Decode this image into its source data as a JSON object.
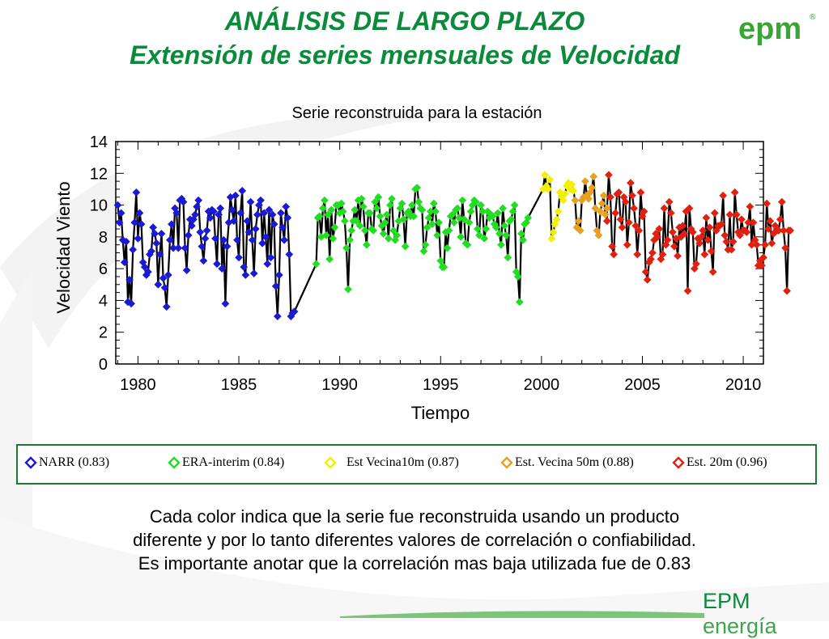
{
  "header": {
    "title_line1": "ANÁLISIS DE LARGO PLAZO",
    "title_line2": "Extensión de series mensuales de Velocidad",
    "logo_text": "epm",
    "logo_mark": "®"
  },
  "legend": {
    "items": [
      {
        "label": "NARR (0.83)",
        "color": "#1a1ad6"
      },
      {
        "label": "ERA-interim (0.84)",
        "color": "#22dd22"
      },
      {
        "label": "Est Vecina10m (0.87)",
        "color": "#f2f200"
      },
      {
        "label": "Est. Vecina 50m (0.88)",
        "color": "#e8a020"
      },
      {
        "label": "Est. 20m (0.96)",
        "color": "#e02010"
      }
    ]
  },
  "caption": {
    "line1": "Cada color indica que la serie fue reconstruida usando un producto",
    "line2": "diferente y por lo tanto diferentes valores de correlación o confiabilidad.",
    "line3": "Es importante anotar que la correlación mas baja utilizada fue de 0.83"
  },
  "footer": {
    "brand": "EPM",
    "brand2": "energía"
  },
  "colors": {
    "green": "#0a8a3a",
    "line": "#000000"
  },
  "chart_data": {
    "type": "line",
    "title": "Serie reconstruida para la estación",
    "xlabel": "Tiempo",
    "ylabel": "Velocidad Viento",
    "xlim": [
      1978.9,
      2011.0
    ],
    "ylim": [
      0,
      14
    ],
    "xticks": [
      1980,
      1985,
      1990,
      1995,
      2000,
      2005,
      2010
    ],
    "xtick_labels": [
      "1980",
      "1985",
      "1990",
      "1995",
      "2000",
      "2005",
      "2010"
    ],
    "yticks": [
      0,
      2,
      4,
      6,
      8,
      10,
      12,
      14
    ],
    "ytick_labels": [
      "0",
      "2",
      "4",
      "6",
      "8",
      "10",
      "12",
      "14"
    ],
    "series": [
      {
        "name": "NARR (0.83)",
        "color": "#1a1ad6",
        "start": 1979.0,
        "values": [
          10.0,
          8.9,
          9.5,
          7.8,
          6.4,
          7.7,
          3.9,
          5.3,
          3.8,
          7.2,
          8.9,
          10.8,
          7.9,
          9.5,
          8.8,
          6.4,
          6.1,
          5.6,
          5.8,
          6.9,
          7.1,
          8.6,
          8.2,
          7.6,
          5.0,
          6.9,
          8.2,
          5.4,
          4.8,
          3.6,
          5.6,
          7.8,
          8.8,
          7.3,
          9.8,
          9.5,
          7.3,
          10.3,
          10.4,
          10.2,
          7.3,
          5.9,
          8.1,
          9.1,
          8.7,
          9.1,
          9.4,
          9.9,
          10.3,
          8.3,
          7.4,
          6.5,
          7.9,
          8.4,
          9.6,
          9.2,
          9.7,
          9.6,
          7.9,
          6.3,
          9.4,
          9.8,
          6.0,
          7.8,
          3.8,
          7.4,
          8.9,
          10.5,
          9.7,
          9.0,
          10.6,
          7.8,
          6.7,
          9.5,
          10.9,
          6.1,
          5.6,
          9.0,
          8.3,
          10.2,
          7.8,
          5.7,
          8.5,
          9.4,
          10.0,
          10.3,
          7.6,
          9.5,
          8.0,
          6.3,
          9.7,
          6.7,
          9.4,
          8.8,
          4.9,
          3.0,
          5.6,
          9.5,
          8.6,
          7.8,
          9.9,
          9.2,
          6.9,
          3.0,
          3.2,
          3.3
        ]
      },
      {
        "name": "ERA-interim (0.84)",
        "color": "#22dd22",
        "start": 1988.833,
        "values": [
          6.3,
          9.2,
          9.3,
          8.0,
          9.8,
          10.3,
          8.1,
          9.4,
          6.6,
          9.7,
          7.9,
          8.6,
          10.0,
          10.0,
          9.5,
          10.1,
          9.6,
          9.0,
          7.3,
          4.7,
          7.8,
          8.4,
          9.0,
          9.7,
          9.0,
          10.3,
          8.7,
          10.4,
          9.9,
          8.4,
          7.5,
          9.5,
          9.5,
          8.5,
          8.4,
          10.2,
          9.8,
          10.5,
          9.3,
          8.7,
          8.2,
          8.9,
          9.4,
          7.9,
          10.0,
          10.4,
          8.4,
          7.8,
          8.1,
          9.0,
          9.8,
          10.1,
          9.1,
          7.4,
          9.5,
          9.6,
          9.3,
          10.0,
          9.3,
          11.0,
          11.1,
          10.2,
          9.8,
          9.7,
          7.1,
          7.5,
          8.6,
          9.2,
          9.6,
          8.8,
          10.1,
          9.6,
          8.1,
          8.9,
          6.5,
          6.1,
          6.1,
          8.3,
          7.3,
          8.4,
          9.3,
          9.4,
          8.9,
          9.7,
          9.8,
          9.2,
          8.0,
          10.3,
          9.1,
          7.6,
          7.5,
          8.9,
          9.6,
          10.0,
          10.3,
          10.2,
          8.5,
          8.1,
          10.0,
          9.6,
          7.9,
          8.5,
          9.6,
          9.2,
          9.4,
          9.3,
          8.8,
          8.6,
          9.5,
          8.2,
          7.5,
          9.8,
          8.7,
          8.1,
          6.7,
          9.0,
          9.1,
          9.6,
          10.0,
          5.8,
          5.5,
          3.9,
          8.2,
          7.8,
          8.8,
          8.9,
          9.2
        ]
      },
      {
        "name": "Est Vecina10m (0.87)",
        "color": "#f2f200",
        "start": 2000.083,
        "values": [
          11.0,
          11.9,
          11.2,
          11.0,
          11.6,
          7.9,
          8.3,
          8.8,
          9.1,
          9.6,
          10.8,
          10.5,
          10.3,
          10.7,
          11.2,
          11.4,
          11.0,
          11.3,
          10.9
        ]
      },
      {
        "name": "Est. Vecina 50m (0.88)",
        "color": "#e8a020",
        "start": 2001.667,
        "values": [
          10.3,
          8.6,
          9.0,
          8.4,
          10.3,
          10.5,
          11.5,
          10.6,
          10.4,
          10.8,
          11.1,
          11.8,
          9.8,
          8.4,
          8.1,
          9.6,
          10.1,
          10.6,
          9.4,
          9.8
        ]
      },
      {
        "name": "Est. 20m (0.96)",
        "color": "#e02010",
        "start": 2003.25,
        "values": [
          9.0,
          11.9,
          10.5,
          7.4,
          6.9,
          9.5,
          10.7,
          10.8,
          9.1,
          8.6,
          10.5,
          10.2,
          7.5,
          8.9,
          11.4,
          10.6,
          9.8,
          8.7,
          6.9,
          8.4,
          10.8,
          9.3,
          9.6,
          5.8,
          5.3,
          6.4,
          6.6,
          7.0,
          7.8,
          8.2,
          8.0,
          8.5,
          6.6,
          6.9,
          9.8,
          7.5,
          7.8,
          10.2,
          9.5,
          8.3,
          7.4,
          7.9,
          6.8,
          8.6,
          8.0,
          8.7,
          8.2,
          9.6,
          4.6,
          9.8,
          8.5,
          8.3,
          6.0,
          6.3,
          7.9,
          7.6,
          8.0,
          8.4,
          6.9,
          9.2,
          7.8,
          8.6,
          7.1,
          5.8,
          9.5,
          8.4,
          8.7,
          8.7,
          8.8,
          10.6,
          8.1,
          7.7,
          7.2,
          9.4,
          7.2,
          7.7,
          10.8,
          9.4,
          8.3,
          8.1,
          9.1,
          8.4,
          8.4,
          8.3,
          8.9,
          9.9,
          7.5,
          8.9,
          7.8,
          7.5,
          6.2,
          6.5,
          6.2,
          6.7,
          7.5,
          10.1,
          8.5,
          9.0,
          7.6,
          8.2,
          8.7,
          8.4,
          8.4,
          9.1,
          10.2,
          8.4,
          7.3,
          4.6,
          8.4,
          8.4
        ]
      }
    ]
  }
}
